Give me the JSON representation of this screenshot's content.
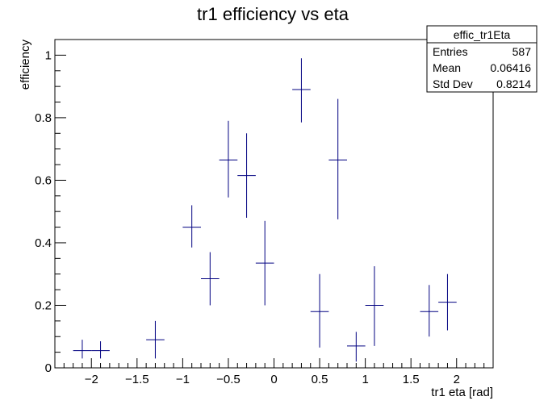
{
  "chart_data": {
    "type": "scatter",
    "title": "tr1 efficiency vs eta",
    "xlabel": "tr1 eta [rad]",
    "ylabel": "efficiency",
    "xlim": [
      -2.4,
      2.4
    ],
    "ylim": [
      0,
      1.05
    ],
    "x_ticks": [
      -2,
      -1.5,
      -1,
      -0.5,
      0,
      0.5,
      1,
      1.5,
      2
    ],
    "x_tick_labels": [
      "−2",
      "−1.5",
      "−1",
      "−0.5",
      "0",
      "0.5",
      "1",
      "1.5",
      "2"
    ],
    "y_ticks": [
      0,
      0.2,
      0.4,
      0.6,
      0.8,
      1
    ],
    "y_tick_labels": [
      "0",
      "0.2",
      "0.4",
      "0.6",
      "0.8",
      "1"
    ],
    "grid": false,
    "marker_color": "#000080",
    "points": [
      {
        "x": -2.1,
        "y": 0.055,
        "ylo": 0.03,
        "yhi": 0.09
      },
      {
        "x": -1.9,
        "y": 0.055,
        "ylo": 0.03,
        "yhi": 0.085
      },
      {
        "x": -1.3,
        "y": 0.09,
        "ylo": 0.03,
        "yhi": 0.15
      },
      {
        "x": -0.9,
        "y": 0.45,
        "ylo": 0.385,
        "yhi": 0.52
      },
      {
        "x": -0.7,
        "y": 0.285,
        "ylo": 0.2,
        "yhi": 0.37
      },
      {
        "x": -0.5,
        "y": 0.665,
        "ylo": 0.545,
        "yhi": 0.79
      },
      {
        "x": -0.3,
        "y": 0.615,
        "ylo": 0.48,
        "yhi": 0.75
      },
      {
        "x": -0.1,
        "y": 0.335,
        "ylo": 0.2,
        "yhi": 0.47
      },
      {
        "x": 0.3,
        "y": 0.89,
        "ylo": 0.785,
        "yhi": 0.99
      },
      {
        "x": 0.5,
        "y": 0.18,
        "ylo": 0.065,
        "yhi": 0.3
      },
      {
        "x": 0.7,
        "y": 0.665,
        "ylo": 0.475,
        "yhi": 0.86
      },
      {
        "x": 0.9,
        "y": 0.07,
        "ylo": 0.02,
        "yhi": 0.115
      },
      {
        "x": 1.1,
        "y": 0.2,
        "ylo": 0.07,
        "yhi": 0.325
      },
      {
        "x": 1.7,
        "y": 0.18,
        "ylo": 0.1,
        "yhi": 0.265
      },
      {
        "x": 1.9,
        "y": 0.21,
        "ylo": 0.12,
        "yhi": 0.3
      }
    ],
    "x_half_width": 0.1,
    "legend_position": "top-right",
    "stats_box": {
      "title": "effic_tr1Eta",
      "rows": [
        {
          "label": "Entries",
          "value": "587"
        },
        {
          "label": "Mean",
          "value": "0.06416"
        },
        {
          "label": "Std Dev",
          "value": "0.8214"
        }
      ]
    }
  }
}
